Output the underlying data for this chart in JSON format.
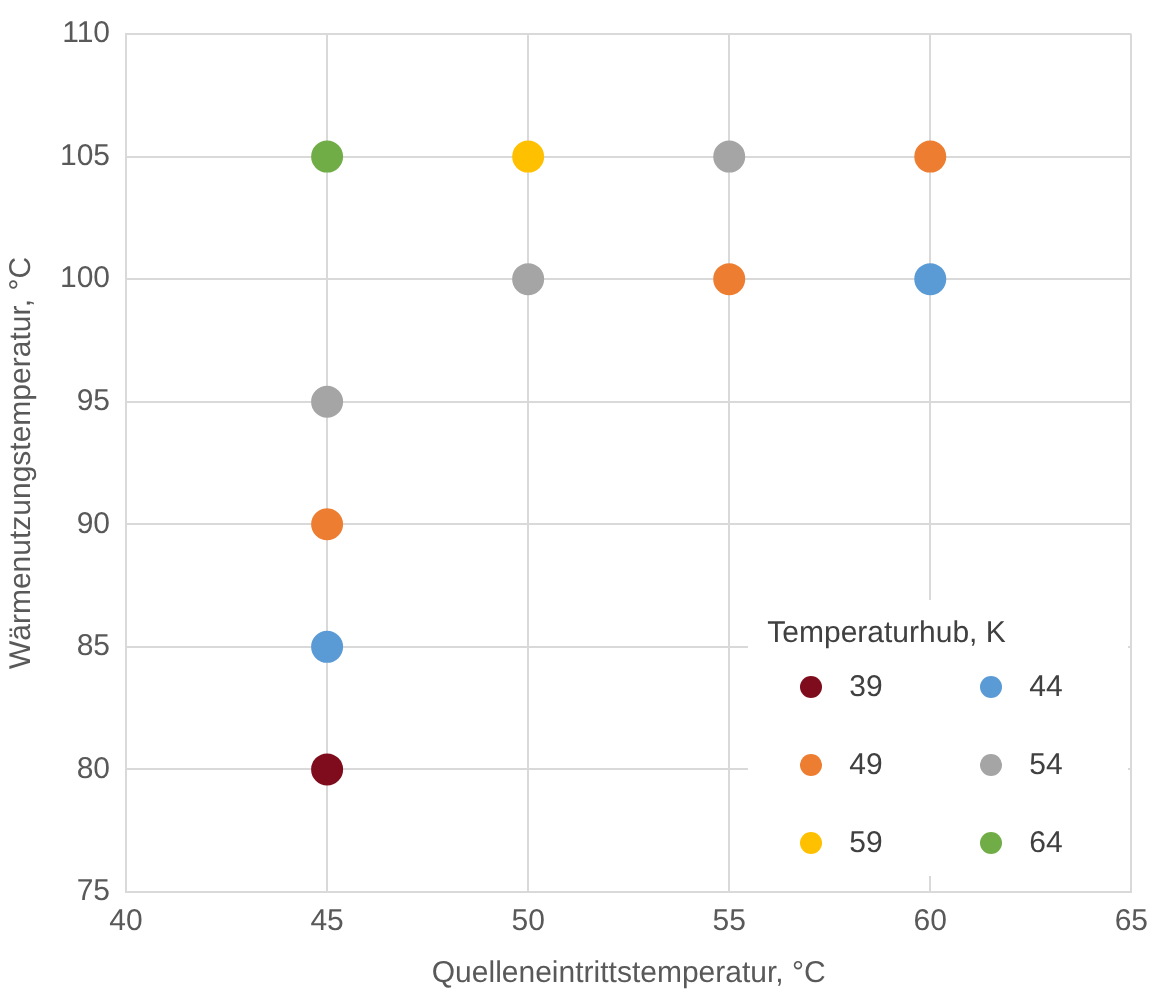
{
  "chart_data": {
    "type": "scatter",
    "xlabel": "Quelleneintrittstemperatur, °C",
    "ylabel": "Wärmenutzungstemperatur, °C",
    "legend_title": "Temperaturhub, K",
    "xlim": [
      40,
      65
    ],
    "xticks": [
      40,
      45,
      50,
      55,
      60,
      65
    ],
    "ylim": [
      75,
      110
    ],
    "yticks": [
      75,
      80,
      85,
      90,
      95,
      100,
      105,
      110
    ],
    "grid": true,
    "legend": "bottom right",
    "marker": "circle",
    "series": [
      {
        "name": "39",
        "color": "#7f0c1c",
        "x": [
          45
        ],
        "values": [
          80
        ]
      },
      {
        "name": "44",
        "color": "#5b9bd5",
        "x": [
          45,
          60
        ],
        "values": [
          85,
          100
        ]
      },
      {
        "name": "49",
        "color": "#ed7d31",
        "x": [
          45,
          55,
          60
        ],
        "values": [
          90,
          100,
          105
        ]
      },
      {
        "name": "54",
        "color": "#a5a5a5",
        "x": [
          45,
          50,
          55
        ],
        "values": [
          95,
          100,
          105
        ]
      },
      {
        "name": "59",
        "color": "#ffc000",
        "x": [
          50
        ],
        "values": [
          105
        ]
      },
      {
        "name": "64",
        "color": "#70ad47",
        "x": [
          45
        ],
        "values": [
          105
        ]
      }
    ]
  }
}
